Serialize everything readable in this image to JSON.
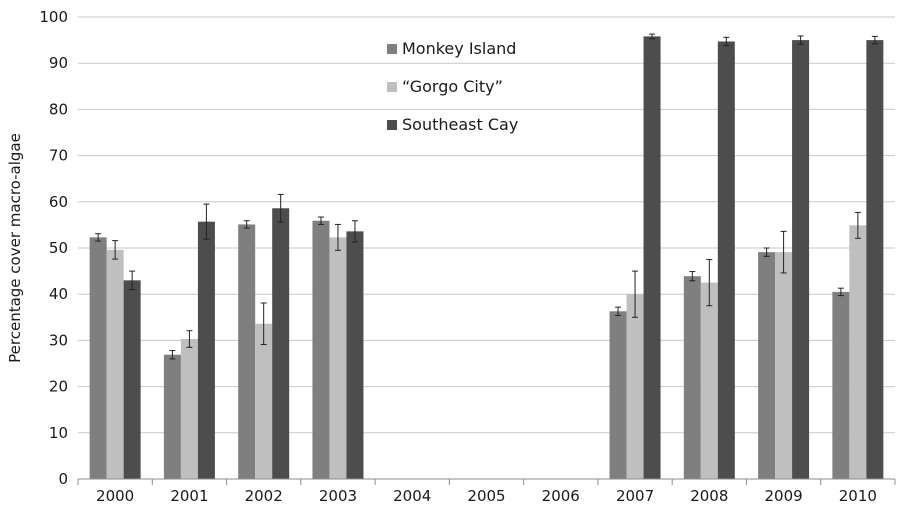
{
  "chart_data": {
    "type": "bar",
    "title": "",
    "xlabel": "",
    "ylabel": "Percentage cover macro-algae",
    "ylim": [
      0,
      100
    ],
    "yticks": [
      0,
      10,
      20,
      30,
      40,
      50,
      60,
      70,
      80,
      90,
      100
    ],
    "grid": true,
    "legend_position": "top-center",
    "categories": [
      "2000",
      "2001",
      "2002",
      "2003",
      "2004",
      "2005",
      "2006",
      "2007",
      "2008",
      "2009",
      "2010"
    ],
    "series": [
      {
        "name": "Monkey Island",
        "color": "#7f7f7f",
        "values": [
          52.3,
          26.9,
          55.1,
          55.9,
          null,
          null,
          null,
          36.3,
          43.9,
          49.1,
          40.5
        ],
        "errors": [
          0.8,
          0.9,
          0.8,
          0.8,
          null,
          null,
          null,
          0.9,
          1.0,
          0.9,
          0.8
        ]
      },
      {
        "name": "“Gorgo City”",
        "color": "#bfbfbf",
        "values": [
          49.6,
          30.3,
          33.6,
          52.3,
          null,
          null,
          null,
          40.0,
          42.5,
          49.1,
          54.9
        ],
        "errors": [
          2.0,
          1.8,
          4.5,
          2.8,
          null,
          null,
          null,
          5.0,
          5.0,
          4.5,
          2.8
        ]
      },
      {
        "name": "Southeast Cay",
        "color": "#4d4d4d",
        "values": [
          43.0,
          55.7,
          58.6,
          53.6,
          null,
          null,
          null,
          95.8,
          94.7,
          95.0,
          95.0
        ],
        "errors": [
          2.0,
          3.8,
          3.0,
          2.3,
          null,
          null,
          null,
          0.5,
          0.9,
          0.9,
          0.8
        ]
      }
    ]
  }
}
